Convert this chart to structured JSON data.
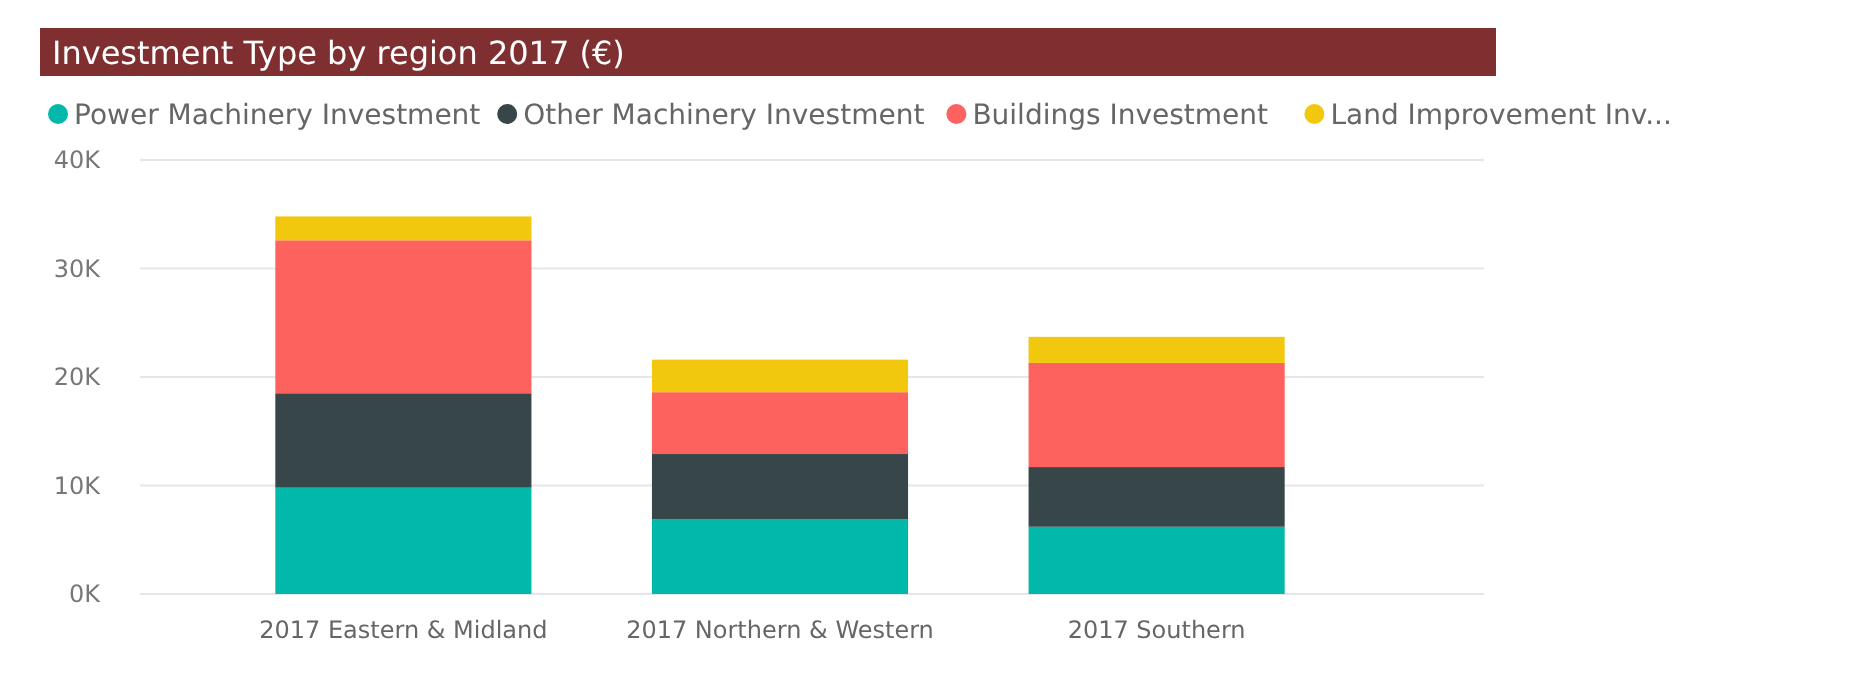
{
  "chart_data": {
    "type": "bar",
    "title": "Investment Type by region 2017 (€)",
    "categories": [
      "2017 Eastern & Midland",
      "2017 Northern & Western",
      "2017 Southern"
    ],
    "stacked": true,
    "series": [
      {
        "name": "Power Machinery Investment",
        "color": "#01b8aa",
        "values": [
          9.8,
          6.9,
          6.2
        ]
      },
      {
        "name": "Other Machinery Investment",
        "color": "#374649",
        "values": [
          8.7,
          6.0,
          5.5
        ]
      },
      {
        "name": "Buildings Investment",
        "color": "#fd625e",
        "values": [
          14.1,
          5.7,
          9.6
        ]
      },
      {
        "name": "Land Improvement Inv...",
        "color": "#f2c80f",
        "values": [
          2.2,
          3.0,
          2.4
        ]
      }
    ],
    "ylim": [
      0,
      40
    ],
    "yticks": [
      {
        "value": 0,
        "label": "0K"
      },
      {
        "value": 10,
        "label": "10K"
      },
      {
        "value": 20,
        "label": "20K"
      },
      {
        "value": 30,
        "label": "30K"
      },
      {
        "value": 40,
        "label": "40K"
      }
    ],
    "grid": "y",
    "legend": "top"
  }
}
